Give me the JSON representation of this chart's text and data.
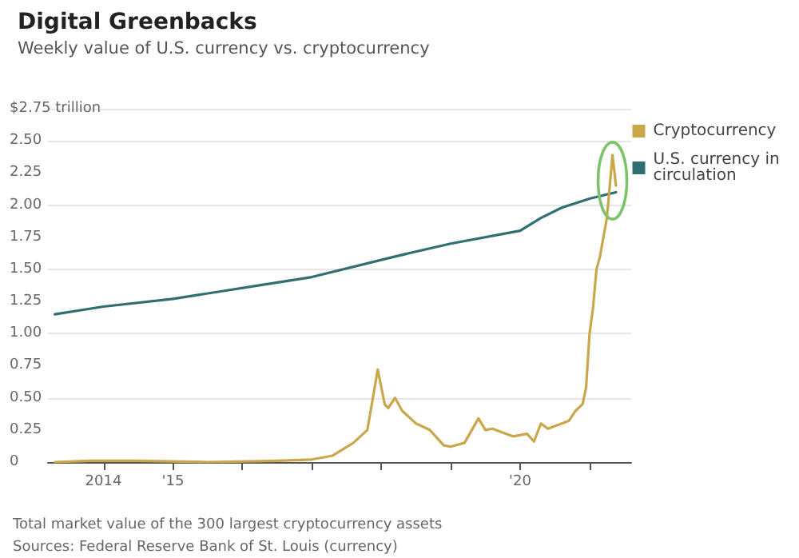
{
  "chart_data": {
    "type": "line",
    "title": "Digital Greenbacks",
    "subtitle": "Weekly value of U.S. currency vs. cryptocurrency",
    "annotations": [
      "Total market value of the 300 largest cryptocurrency assets",
      "Sources: Federal Reserve Bank of St. Louis (currency)"
    ],
    "series": [
      {
        "name": "Cryptocurrency",
        "color": "#c9a84c",
        "x": [
          2013.3,
          2013.8,
          2014.5,
          2015.5,
          2016.5,
          2017.0,
          2017.3,
          2017.6,
          2017.8,
          2017.95,
          2018.05,
          2018.1,
          2018.2,
          2018.3,
          2018.5,
          2018.7,
          2018.9,
          2019.0,
          2019.2,
          2019.4,
          2019.5,
          2019.6,
          2019.8,
          2019.9,
          2020.1,
          2020.2,
          2020.3,
          2020.4,
          2020.5,
          2020.7,
          2020.8,
          2020.9,
          2020.95,
          2021.0,
          2021.05,
          2021.1,
          2021.15,
          2021.2,
          2021.25,
          2021.3,
          2021.33,
          2021.36,
          2021.38
        ],
        "values": [
          0,
          0.01,
          0.01,
          0,
          0.01,
          0.02,
          0.05,
          0.15,
          0.25,
          0.72,
          0.45,
          0.42,
          0.5,
          0.4,
          0.3,
          0.25,
          0.13,
          0.12,
          0.15,
          0.34,
          0.25,
          0.26,
          0.22,
          0.2,
          0.22,
          0.16,
          0.3,
          0.26,
          0.28,
          0.32,
          0.4,
          0.45,
          0.58,
          1.0,
          1.2,
          1.5,
          1.6,
          1.75,
          1.9,
          2.2,
          2.39,
          2.25,
          2.15
        ]
      },
      {
        "name": "U.S. currency in circulation",
        "color": "#2f6f73",
        "x": [
          2013.3,
          2014.0,
          2015.0,
          2016.3,
          2017.0,
          2018.2,
          2019.0,
          2020.0,
          2020.3,
          2020.6,
          2021.0,
          2021.38
        ],
        "values": [
          1.15,
          1.21,
          1.27,
          1.38,
          1.44,
          1.6,
          1.7,
          1.8,
          1.9,
          1.98,
          2.05,
          2.1
        ]
      }
    ],
    "xlim": [
      2013.2,
      2021.6
    ],
    "xticks": [
      {
        "value": 2014,
        "label": "2014"
      },
      {
        "value": 2015,
        "label": "'15"
      },
      {
        "value": 2016,
        "label": null
      },
      {
        "value": 2017,
        "label": null
      },
      {
        "value": 2018,
        "label": null
      },
      {
        "value": 2019,
        "label": null
      },
      {
        "value": 2020,
        "label": "'20"
      },
      {
        "value": 2021,
        "label": null
      }
    ],
    "ylim": [
      0,
      2.75
    ],
    "yticks": [
      {
        "value": 0,
        "label": "0"
      },
      {
        "value": 0.25,
        "label": "0.25"
      },
      {
        "value": 0.5,
        "label": "0.50"
      },
      {
        "value": 0.75,
        "label": "0.75"
      },
      {
        "value": 1,
        "label": "1.00"
      },
      {
        "value": 1.25,
        "label": "1.25"
      },
      {
        "value": 1.5,
        "label": "1.50"
      },
      {
        "value": 1.75,
        "label": "1.75"
      },
      {
        "value": 2,
        "label": "2.00"
      },
      {
        "value": 2.25,
        "label": "2.25"
      },
      {
        "value": 2.5,
        "label": "2.50"
      },
      {
        "value": 2.75,
        "label": "$2.75 trillion"
      }
    ],
    "grid": "y",
    "legend": "right",
    "marker": "none",
    "line_style": "solid"
  }
}
